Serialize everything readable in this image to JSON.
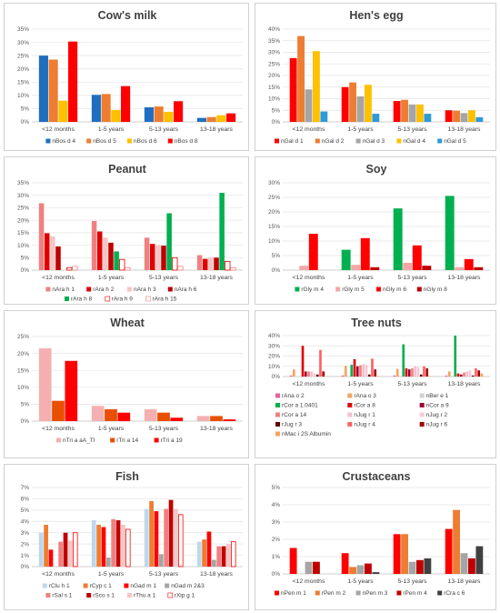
{
  "chart_data": [
    {
      "type": "bar",
      "title": "Cow's milk",
      "categories": [
        "<12 months",
        "1-5 years",
        "5-13 years",
        "13-18 years"
      ],
      "ylim": [
        0,
        35
      ],
      "ystep": 5,
      "ysuffix": "%",
      "series": [
        {
          "name": "nBos d 4",
          "color": "#1f6fc0",
          "values": [
            25,
            10.2,
            5.5,
            1.5
          ]
        },
        {
          "name": "nBos d 5",
          "color": "#ed7d31",
          "values": [
            23.5,
            10.5,
            5.8,
            1.8
          ]
        },
        {
          "name": "nBos d 6",
          "color": "#ffc000",
          "values": [
            8,
            4.5,
            3.8,
            2.5
          ]
        },
        {
          "name": "nBos d 8",
          "color": "#ff0000",
          "values": [
            30.3,
            13.5,
            7.8,
            3.2
          ]
        }
      ]
    },
    {
      "type": "bar",
      "title": "Hen's egg",
      "categories": [
        "<12 months",
        "1-5 years",
        "5-13 years",
        "13-18 years"
      ],
      "ylim": [
        0,
        40
      ],
      "ystep": 5,
      "ysuffix": "%",
      "series": [
        {
          "name": "nGal d 1",
          "color": "#ff0000",
          "values": [
            27.5,
            15,
            9,
            5
          ]
        },
        {
          "name": "nGal d 2",
          "color": "#ed7d31",
          "values": [
            37,
            17,
            9.5,
            4.8
          ]
        },
        {
          "name": "nGal d 3",
          "color": "#a5a5a5",
          "values": [
            14,
            11,
            7.5,
            3.8
          ]
        },
        {
          "name": "nGal d 4",
          "color": "#ffc000",
          "values": [
            30.5,
            16,
            7.5,
            5
          ]
        },
        {
          "name": "nGal d 5",
          "color": "#2e9bd6",
          "values": [
            4.5,
            3.5,
            3.5,
            2
          ]
        }
      ]
    },
    {
      "type": "bar",
      "title": "Peanut",
      "categories": [
        "<12 months",
        "1-5 years",
        "5-13 years",
        "13-18 years"
      ],
      "ylim": [
        0,
        35
      ],
      "ystep": 5,
      "ysuffix": "%",
      "series": [
        {
          "name": "nAra h 1",
          "color": "#f08080",
          "values": [
            26.8,
            19.7,
            13,
            6
          ]
        },
        {
          "name": "rAra h 2",
          "color": "#e00000",
          "values": [
            14.8,
            15.5,
            10.5,
            4.5
          ]
        },
        {
          "name": "nAra h 3",
          "color": "#f4c6c6",
          "values": [
            13.5,
            13,
            10,
            5
          ]
        },
        {
          "name": "nAra h 6",
          "color": "#c00000",
          "values": [
            9.5,
            11,
            9.8,
            5
          ]
        },
        {
          "name": "rAra h 8",
          "color": "#00b050",
          "values": [
            0,
            7.5,
            22.8,
            31
          ]
        },
        {
          "name": "rAra h 9",
          "color": "#ffffff",
          "stroke": "#e00000",
          "values": [
            1,
            4.3,
            5,
            3.5
          ]
        },
        {
          "name": "rAra h 15",
          "color": "#ffffff",
          "stroke": "#f08080",
          "values": [
            1.5,
            1,
            1.5,
            1
          ]
        }
      ]
    },
    {
      "type": "bar",
      "title": "Soy",
      "categories": [
        "<12 months",
        "1-5 years",
        "5-13 years",
        "13-18 years"
      ],
      "ylim": [
        0,
        30
      ],
      "ystep": 5,
      "ysuffix": "%",
      "series": [
        {
          "name": "rGly m 4",
          "color": "#00b050",
          "values": [
            0,
            7,
            21.2,
            25.5
          ]
        },
        {
          "name": "rGly m 5",
          "color": "#f4a6a6",
          "values": [
            1.5,
            1.8,
            2.5,
            1
          ]
        },
        {
          "name": "nGly m 6",
          "color": "#ff0000",
          "values": [
            12.5,
            11,
            8.5,
            3.8
          ]
        },
        {
          "name": "nGly m 8",
          "color": "#c00000",
          "values": [
            0,
            1,
            1.5,
            1
          ]
        }
      ]
    },
    {
      "type": "bar",
      "title": "Wheat",
      "categories": [
        "<12 months",
        "1-5 years",
        "5-13 years",
        "13-18 years"
      ],
      "ylim": [
        0,
        25
      ],
      "ystep": 5,
      "ysuffix": "%",
      "series": [
        {
          "name": "nTri a aA_TI",
          "color": "#f4b0b0",
          "values": [
            21.5,
            4.5,
            3.5,
            1.5
          ]
        },
        {
          "name": "rTri a 14",
          "color": "#e85000",
          "values": [
            6,
            3.5,
            2.5,
            1.5
          ]
        },
        {
          "name": "rTri a 19",
          "color": "#ff0000",
          "values": [
            17.8,
            2.5,
            1,
            0.5
          ]
        }
      ]
    },
    {
      "type": "bar",
      "title": "Tree nuts",
      "categories": [
        "<12 months",
        "1-5 years",
        "5-13 years",
        "13-18 years"
      ],
      "ylim": [
        0,
        40
      ],
      "ystep": 10,
      "ysuffix": "%",
      "series": [
        {
          "name": "rAna o 2",
          "color": "#e8609a",
          "values": [
            1,
            1,
            1,
            1
          ]
        },
        {
          "name": "rAna o 3",
          "color": "#f4a460",
          "values": [
            7,
            10.5,
            7.5,
            5
          ]
        },
        {
          "name": "nBer e 1",
          "color": "#d0d0d0",
          "values": [
            0.5,
            0.5,
            0.5,
            0.5
          ]
        },
        {
          "name": "rCor a 1.0401",
          "color": "#00b050",
          "values": [
            0,
            11.5,
            31.5,
            40
          ]
        },
        {
          "name": "rCor a 8",
          "color": "#e00000",
          "values": [
            30,
            17,
            8,
            3
          ]
        },
        {
          "name": "nCor a 9",
          "color": "#a00030",
          "values": [
            5,
            10,
            7,
            2
          ]
        },
        {
          "name": "rCor a 14",
          "color": "#f08080",
          "values": [
            5,
            11,
            8,
            4
          ]
        },
        {
          "name": "nJug r 1",
          "color": "#f4c0d0",
          "values": [
            5,
            12,
            10,
            5
          ]
        },
        {
          "name": "nJug r 2",
          "color": "#f8c8d8",
          "values": [
            3,
            11.5,
            9.5,
            6
          ]
        },
        {
          "name": "rJug r 3",
          "color": "#600000",
          "values": [
            2,
            2,
            2,
            1
          ]
        },
        {
          "name": "nJug r 4",
          "color": "#ff6060",
          "values": [
            26,
            17.5,
            10,
            8
          ]
        },
        {
          "name": "nJug r 6",
          "color": "#a00000",
          "values": [
            5,
            7,
            8,
            6
          ]
        },
        {
          "name": "nMac i 2S Albumin",
          "color": "#f4a460",
          "values": [
            0,
            0.5,
            0.5,
            3
          ]
        }
      ]
    },
    {
      "type": "bar",
      "title": "Fish",
      "categories": [
        "<12 months",
        "1-5 years",
        "5-13 years",
        "13-18 years"
      ],
      "ylim": [
        0,
        7
      ],
      "ystep": 1,
      "ysuffix": "%",
      "series": [
        {
          "name": "rClu h 1",
          "color": "#bdd7ee",
          "values": [
            3,
            4.1,
            5.1,
            2.2
          ]
        },
        {
          "name": "rCyp c 1",
          "color": "#ed7d31",
          "values": [
            3.7,
            3.7,
            5.8,
            2.4
          ]
        },
        {
          "name": "nGad m 1",
          "color": "#ff0000",
          "values": [
            1.5,
            3.5,
            4.9,
            3.1
          ]
        },
        {
          "name": "nGad m 2&3",
          "color": "#a5a5a5",
          "values": [
            0,
            0.8,
            1.1,
            0.6
          ]
        },
        {
          "name": "rSal s 1",
          "color": "#f08080",
          "values": [
            2.2,
            4.2,
            5.1,
            1.8
          ]
        },
        {
          "name": "rSco s 1",
          "color": "#c00000",
          "values": [
            3,
            4.1,
            5.9,
            1.8
          ]
        },
        {
          "name": "rThu a 1",
          "color": "#f4c6c6",
          "values": [
            2.3,
            3.7,
            5.1,
            2
          ]
        },
        {
          "name": "rXip g 1",
          "color": "#ffffff",
          "stroke": "#ff0000",
          "values": [
            3,
            3.3,
            4.6,
            2.2
          ]
        }
      ]
    },
    {
      "type": "bar",
      "title": "Crustaceans",
      "categories": [
        "<12 months",
        "1-5 years",
        "5-13 years",
        "13-18 years"
      ],
      "ylim": [
        0,
        5
      ],
      "ystep": 1,
      "ysuffix": "%",
      "series": [
        {
          "name": "nPen m 1",
          "color": "#ff0000",
          "values": [
            1.5,
            1.2,
            2.3,
            2.6
          ]
        },
        {
          "name": "rPen m 2",
          "color": "#ed7d31",
          "values": [
            0,
            0.4,
            2.3,
            3.7
          ]
        },
        {
          "name": "nPen m 3",
          "color": "#a5a5a5",
          "values": [
            0.7,
            0.5,
            0.7,
            1.2
          ]
        },
        {
          "name": "rPen m 4",
          "color": "#c00000",
          "values": [
            0.7,
            0.6,
            0.8,
            0.9
          ]
        },
        {
          "name": "rCra c 6",
          "color": "#404040",
          "values": [
            0,
            0.1,
            0.9,
            1.6
          ]
        }
      ]
    }
  ]
}
